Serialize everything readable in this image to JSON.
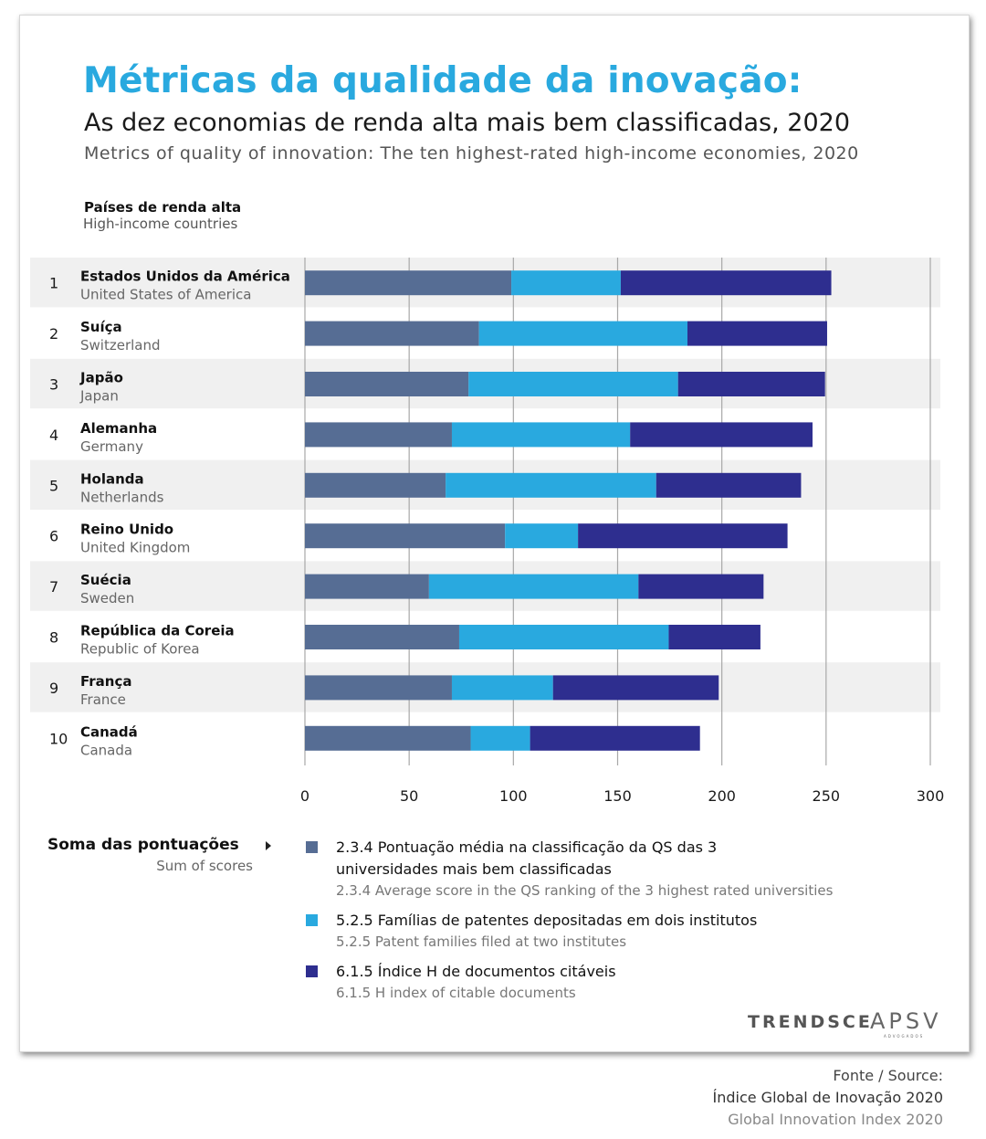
{
  "title": "Métricas da qualidade da inovação:",
  "subtitle_pt": "As dez economias de renda alta mais bem classificadas, 2020",
  "subtitle_en": "Metrics of quality of innovation: The ten highest-rated high-income economies, 2020",
  "category_header": {
    "pt": "Países de renda alta",
    "en": "High-income countries"
  },
  "sum_label": {
    "pt": "Soma das pontuações",
    "en": "Sum of scores"
  },
  "colors": {
    "title": "#29a9df",
    "qs": "#566d94",
    "patents": "#29a9df",
    "hindex": "#2e2e8f",
    "stripe": "#f0f0f0",
    "grid": "#a8a8a8"
  },
  "legend": [
    {
      "pt": "2.3.4 Pontuação média na classificação da QS das 3 universidades mais bem classificadas",
      "en": "2.3.4 Average score in the QS ranking of the 3 highest rated universities",
      "color": "#566d94"
    },
    {
      "pt": "5.2.5 Famílias de patentes depositadas em dois institutos",
      "en": "5.2.5 Patent families filed at two institutes",
      "color": "#29a9df"
    },
    {
      "pt": "6.1.5 Índice H de documentos citáveis",
      "en": "6.1.5 H index of citable documents",
      "color": "#2e2e8f"
    }
  ],
  "logos": {
    "trends": "TRENDSCE",
    "apsv": "APSV",
    "apsv_sub": "ADVOGADOS"
  },
  "source": {
    "line1": "Fonte / Source:",
    "line2": "Índice Global de Inovação 2020",
    "line3": "Global Innovation Index 2020"
  },
  "chart_data": {
    "type": "bar",
    "orientation": "horizontal",
    "stacked": true,
    "xlim": [
      0,
      300
    ],
    "xticks": [
      0,
      50,
      100,
      150,
      200,
      250,
      300
    ],
    "grid": true,
    "categories": [
      {
        "rank": "1",
        "pt": "Estados Unidos da América",
        "en": "United States of America"
      },
      {
        "rank": "2",
        "pt": "Suíça",
        "en": "Switzerland"
      },
      {
        "rank": "3",
        "pt": "Japão",
        "en": "Japan"
      },
      {
        "rank": "4",
        "pt": "Alemanha",
        "en": "Germany"
      },
      {
        "rank": "5",
        "pt": "Holanda",
        "en": "Netherlands"
      },
      {
        "rank": "6",
        "pt": "Reino Unido",
        "en": "United Kingdom"
      },
      {
        "rank": "7",
        "pt": "Suécia",
        "en": "Sweden"
      },
      {
        "rank": "8",
        "pt": "República da Coreia",
        "en": "Republic of Korea"
      },
      {
        "rank": "9",
        "pt": "França",
        "en": "France"
      },
      {
        "rank": "10",
        "pt": "Canadá",
        "en": "Canada"
      }
    ],
    "series": [
      {
        "name": "2.3.4 Pontuação média na classificação da QS das 3 universidades mais bem classificadas",
        "color": "#566d94",
        "values": [
          99.0,
          83.5,
          78.5,
          70.5,
          67.5,
          96.0,
          59.5,
          74.0,
          70.5,
          79.5
        ]
      },
      {
        "name": "5.2.5 Famílias de patentes depositadas em dois institutos",
        "color": "#29a9df",
        "values": [
          52.5,
          100.0,
          100.5,
          85.5,
          101.0,
          35.0,
          100.5,
          100.5,
          48.5,
          28.5
        ]
      },
      {
        "name": "6.1.5 Índice H de documentos citáveis",
        "color": "#2e2e8f",
        "values": [
          101.0,
          67.0,
          70.5,
          87.5,
          69.5,
          100.5,
          60.0,
          44.0,
          79.5,
          81.5
        ]
      }
    ]
  }
}
